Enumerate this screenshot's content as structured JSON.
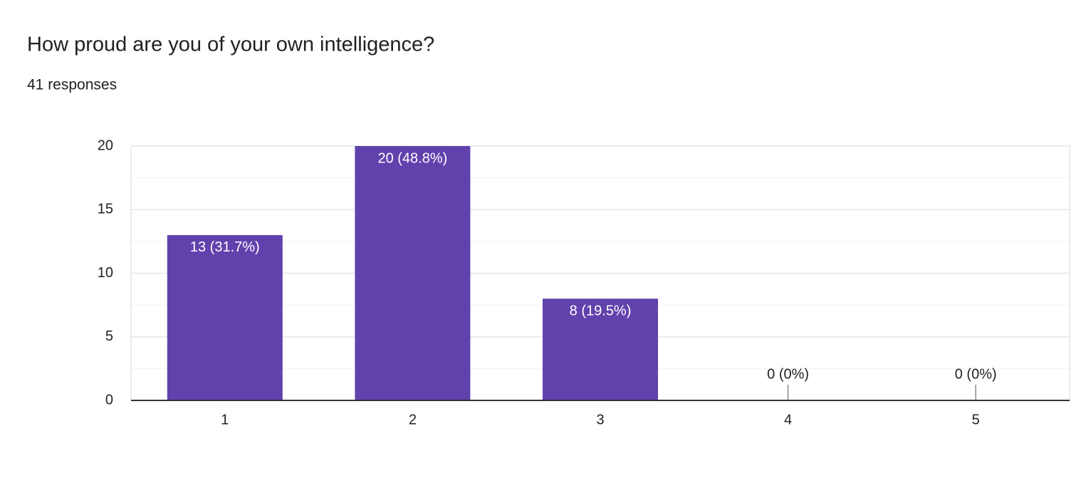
{
  "title": "How proud are you of your own intelligence?",
  "subtitle": "41 responses",
  "chart_data": {
    "type": "bar",
    "categories": [
      "1",
      "2",
      "3",
      "4",
      "5"
    ],
    "values": [
      13,
      20,
      8,
      0,
      0
    ],
    "value_labels": [
      "13 (31.7%)",
      "20 (48.8%)",
      "8 (19.5%)",
      "0 (0%)",
      "0 (0%)"
    ],
    "color": "#6142ad",
    "ylim": [
      0,
      20
    ],
    "yticks": [
      0,
      5,
      10,
      15,
      20
    ],
    "minor_yticks": [
      2.5,
      7.5,
      12.5,
      17.5
    ],
    "grid": true
  }
}
